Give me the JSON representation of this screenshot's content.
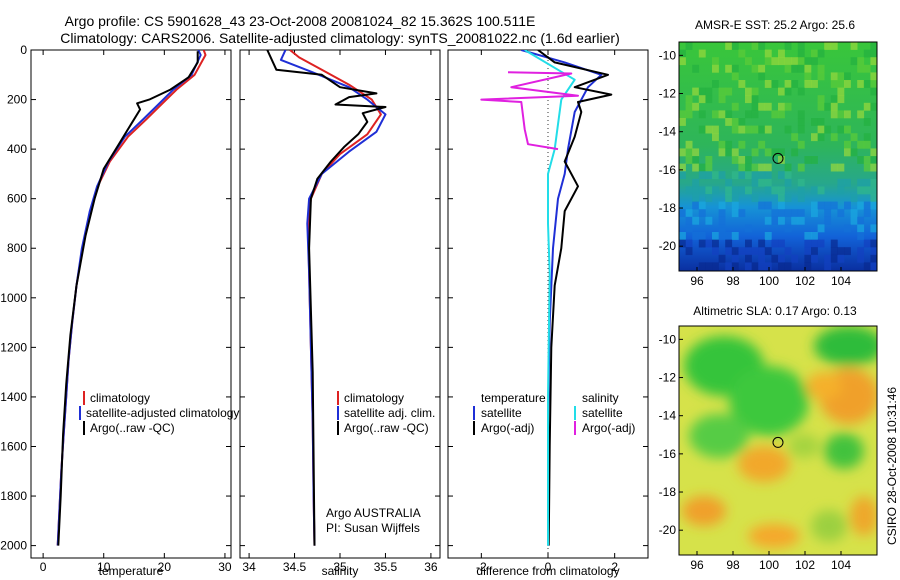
{
  "titles": {
    "line1": "Argo profile: CS 5901628_43 23-Oct-2008 20081024_82 15.362S 100.511E",
    "line2": "Climatology: CARS2006. Satellite-adjusted climatology: synTS_20081022.nc (1.6d earlier)",
    "side_label": "CSIRO 28-Oct-2008 10:31:46",
    "credit1": "Argo AUSTRALIA",
    "credit2": "PI: Susan Wijffels"
  },
  "colors": {
    "climatology": "#dd2222",
    "satellite": "#1f2fd6",
    "argo": "#000000",
    "sal_satellite": "#22dde8",
    "sal_argo": "#e020e0"
  },
  "chart_data": [
    {
      "type": "line",
      "name": "temperature-profile",
      "xlabel": "temperature",
      "ylabel": "",
      "xlim": [
        -2,
        31
      ],
      "ylim": [
        2050,
        0
      ],
      "xticks": [
        0,
        10,
        20,
        30
      ],
      "yticks": [
        0,
        200,
        400,
        600,
        800,
        1000,
        1200,
        1400,
        1600,
        1800,
        2000
      ],
      "legend": [
        "climatology",
        "satellite-adjusted climatology",
        "Argo(..raw -QC)"
      ],
      "series": [
        {
          "name": "climatology",
          "color": "#dd2222",
          "x": [
            26.5,
            26.8,
            25.0,
            22.0,
            19.5,
            17.0,
            14.0,
            11.0,
            9.0,
            7.8,
            6.5,
            5.5,
            4.8,
            4.2,
            3.8,
            3.4,
            3.0,
            2.7,
            2.4
          ],
          "y": [
            0,
            20,
            100,
            160,
            220,
            280,
            350,
            450,
            550,
            650,
            800,
            950,
            1100,
            1250,
            1400,
            1550,
            1700,
            1850,
            2000
          ]
        },
        {
          "name": "satellite-adjusted climatology",
          "color": "#1f2fd6",
          "x": [
            25.6,
            26.0,
            24.5,
            21.5,
            19.0,
            16.5,
            13.5,
            10.8,
            8.9,
            7.7,
            6.4,
            5.5,
            4.8,
            4.2,
            3.8,
            3.4,
            3.0,
            2.7,
            2.4
          ],
          "y": [
            0,
            20,
            100,
            160,
            220,
            280,
            350,
            450,
            550,
            650,
            800,
            950,
            1100,
            1250,
            1400,
            1550,
            1700,
            1850,
            2000
          ]
        },
        {
          "name": "Argo(..raw -QC)",
          "color": "#000000",
          "x": [
            25.5,
            25.5,
            24.0,
            21.0,
            17.5,
            15.5,
            16.0,
            14.5,
            12.5,
            10.0,
            8.5,
            7.0,
            5.5,
            4.5,
            3.8,
            3.3,
            2.9,
            2.5
          ],
          "y": [
            5,
            50,
            110,
            160,
            200,
            215,
            240,
            300,
            380,
            480,
            600,
            750,
            950,
            1150,
            1350,
            1550,
            1800,
            2000
          ]
        }
      ]
    },
    {
      "type": "line",
      "name": "salinity-profile",
      "xlabel": "salinity",
      "xlim": [
        33.9,
        36.1
      ],
      "ylim": [
        2050,
        0
      ],
      "xticks": [
        34,
        34.5,
        35,
        35.5,
        36
      ],
      "legend": [
        "climatology",
        "satellite adj. clim.",
        "Argo(..raw -QC)"
      ],
      "series": [
        {
          "name": "climatology",
          "color": "#dd2222",
          "x": [
            34.45,
            34.55,
            34.8,
            35.1,
            35.35,
            35.45,
            35.3,
            35.0,
            34.8,
            34.68,
            34.65,
            34.66,
            34.68,
            34.7,
            34.71,
            34.72
          ],
          "y": [
            0,
            30,
            80,
            140,
            200,
            260,
            340,
            420,
            500,
            600,
            700,
            900,
            1200,
            1500,
            1800,
            2000
          ]
        },
        {
          "name": "satellite adj. clim.",
          "color": "#1f2fd6",
          "x": [
            34.4,
            34.35,
            34.7,
            35.1,
            35.3,
            35.5,
            35.4,
            35.1,
            34.8,
            34.66,
            34.64,
            34.66,
            34.68,
            34.7,
            34.71,
            34.72
          ],
          "y": [
            0,
            40,
            90,
            150,
            200,
            260,
            330,
            410,
            500,
            600,
            700,
            900,
            1200,
            1500,
            1800,
            2000
          ]
        },
        {
          "name": "Argo(..raw -QC)",
          "color": "#000000",
          "x": [
            34.2,
            34.3,
            34.8,
            35.0,
            35.4,
            35.1,
            34.95,
            35.5,
            35.25,
            35.3,
            35.2,
            35.05,
            34.9,
            34.75,
            34.68,
            34.66,
            34.7,
            34.72
          ],
          "y": [
            0,
            80,
            100,
            150,
            175,
            190,
            220,
            230,
            255,
            290,
            340,
            390,
            450,
            520,
            600,
            800,
            1300,
            2000
          ]
        }
      ]
    },
    {
      "type": "line",
      "name": "difference-profile",
      "xlabel": "difference from climatology",
      "xlim": [
        -3.0,
        3.0
      ],
      "ylim": [
        2050,
        0
      ],
      "xticks": [
        -2,
        0,
        2
      ],
      "legend": [
        "temperature",
        "satellite",
        "Argo(-adj)",
        "salinity",
        "satellite",
        "Argo(-adj)"
      ],
      "series": [
        {
          "name": "temperature satellite",
          "color": "#1f2fd6",
          "x": [
            -0.8,
            0.5,
            1.6,
            1.2,
            0.8,
            0.6,
            0.5,
            0.3,
            0.15,
            0.05,
            0.0,
            0.0
          ],
          "y": [
            0,
            50,
            100,
            150,
            250,
            400,
            500,
            600,
            800,
            1100,
            1500,
            2000
          ]
        },
        {
          "name": "temperature Argo(-adj)",
          "color": "#000000",
          "x": [
            -0.3,
            0.2,
            1.8,
            0.8,
            1.9,
            0.9,
            1.0,
            0.8,
            0.5,
            0.9,
            0.5,
            0.4,
            0.2,
            0.1,
            0.05,
            0.02
          ],
          "y": [
            0,
            50,
            100,
            150,
            180,
            210,
            250,
            350,
            450,
            550,
            650,
            800,
            950,
            1200,
            1600,
            2000
          ]
        },
        {
          "name": "salinity satellite",
          "color": "#22dde8",
          "x": [
            -0.7,
            0.3,
            0.8,
            0.4,
            0.3,
            0.2,
            0.0,
            0.0,
            0.05,
            0.0,
            0.0
          ],
          "y": [
            0,
            80,
            120,
            200,
            300,
            400,
            500,
            700,
            900,
            1400,
            2000
          ]
        },
        {
          "name": "salinity Argo(-adj)",
          "color": "#e020e0",
          "x": [
            -1.2,
            0.7,
            -1.1,
            0.9,
            -2.0,
            -0.8,
            -0.7,
            -0.6,
            0.3
          ],
          "y": [
            90,
            95,
            150,
            185,
            200,
            210,
            320,
            380,
            400
          ]
        }
      ]
    },
    {
      "type": "heatmap",
      "name": "sst-map",
      "title": "AMSR-E SST: 25.2 Argo: 25.6",
      "xlim": [
        95,
        106
      ],
      "ylim": [
        -21.3,
        -9.3
      ],
      "xticks": [
        96,
        98,
        100,
        102,
        104
      ],
      "yticks": [
        -10,
        -12,
        -14,
        -16,
        -18,
        -20
      ],
      "marker": {
        "x": 100.5,
        "y": -15.4
      }
    },
    {
      "type": "heatmap",
      "name": "sla-map",
      "title": "Altimetric SLA: 0.17 Argo: 0.13",
      "xlim": [
        95,
        106
      ],
      "ylim": [
        -21.3,
        -9.3
      ],
      "xticks": [
        96,
        98,
        100,
        102,
        104
      ],
      "yticks": [
        -10,
        -12,
        -14,
        -16,
        -18,
        -20
      ],
      "marker": {
        "x": 100.5,
        "y": -15.4
      }
    }
  ]
}
